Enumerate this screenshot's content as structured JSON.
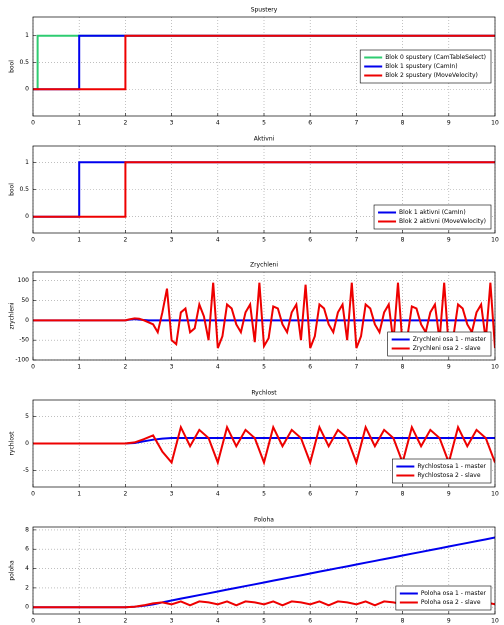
{
  "chart_data": [
    {
      "type": "line",
      "title": "Spustery",
      "ylabel": "bool",
      "xlim": [
        0,
        10
      ],
      "xticks": [
        0,
        1,
        2,
        3,
        4,
        5,
        6,
        7,
        8,
        9,
        10
      ],
      "ylim": [
        -0.5,
        1.35
      ],
      "yticks": [
        0,
        0.5,
        1
      ],
      "grid": true,
      "legend": "center right",
      "series": [
        {
          "name": "Blok 0 spustery (CamTableSelect)",
          "color": "#2ecc71",
          "x": [
            0,
            0.1,
            0.1,
            10
          ],
          "values": [
            0,
            0,
            1,
            1
          ]
        },
        {
          "name": "Blok 1 spustery (CamIn)",
          "color": "#0000ee",
          "x": [
            0,
            1,
            1,
            10
          ],
          "values": [
            0,
            0,
            1,
            1
          ]
        },
        {
          "name": "Blok 2 spustery (MoveVelocity)",
          "color": "#ee0000",
          "x": [
            0,
            2,
            2,
            10
          ],
          "values": [
            0,
            0,
            1,
            1
          ]
        }
      ]
    },
    {
      "type": "line",
      "title": "Aktivni",
      "ylabel": "bool",
      "xlim": [
        0,
        10
      ],
      "xticks": [
        0,
        1,
        2,
        3,
        4,
        5,
        6,
        7,
        8,
        9,
        10
      ],
      "ylim": [
        -0.3,
        1.3
      ],
      "yticks": [
        0,
        0.5,
        1
      ],
      "grid": true,
      "legend": "lower right",
      "series": [
        {
          "name": "Blok 1 aktivni (CamIn)",
          "color": "#0000ee",
          "x": [
            0,
            1,
            1,
            10
          ],
          "values": [
            0,
            0,
            1,
            1
          ]
        },
        {
          "name": "Blok 2 aktivni (MoveVelocity)",
          "color": "#ee0000",
          "x": [
            0,
            2,
            2,
            10
          ],
          "values": [
            0,
            0,
            1,
            1
          ]
        }
      ]
    },
    {
      "type": "line",
      "title": "Zrychleni",
      "ylabel": "zrychleni",
      "xlim": [
        0,
        10
      ],
      "xticks": [
        0,
        1,
        2,
        3,
        4,
        5,
        6,
        7,
        8,
        9,
        10
      ],
      "ylim": [
        -100,
        122
      ],
      "yticks": [
        -100,
        -50,
        0,
        50,
        100
      ],
      "grid": true,
      "legend": "lower right",
      "x": [
        0,
        0.1,
        0.2,
        0.3,
        0.4,
        0.5,
        0.6,
        0.7,
        0.8,
        0.9,
        1,
        1.1,
        1.2,
        1.3,
        1.4,
        1.5,
        1.6,
        1.7,
        1.8,
        1.9,
        2,
        2.1,
        2.2,
        2.3,
        2.4,
        2.5,
        2.6,
        2.7,
        2.8,
        2.9,
        3,
        3.1,
        3.2,
        3.3,
        3.4,
        3.5,
        3.6,
        3.7,
        3.8,
        3.9,
        4,
        4.1,
        4.2,
        4.3,
        4.4,
        4.5,
        4.6,
        4.7,
        4.8,
        4.9,
        5,
        5.1,
        5.2,
        5.3,
        5.4,
        5.5,
        5.6,
        5.7,
        5.8,
        5.9,
        6,
        6.1,
        6.2,
        6.3,
        6.4,
        6.5,
        6.6,
        6.7,
        6.8,
        6.9,
        7,
        7.1,
        7.2,
        7.3,
        7.4,
        7.5,
        7.6,
        7.7,
        7.8,
        7.9,
        8,
        8.1,
        8.2,
        8.3,
        8.4,
        8.5,
        8.6,
        8.7,
        8.8,
        8.9,
        9,
        9.1,
        9.2,
        9.3,
        9.4,
        9.5,
        9.6,
        9.7,
        9.8,
        9.9,
        10
      ],
      "series": [
        {
          "name": "Zrychleni osa 1 - master",
          "color": "#0000ee",
          "values": [
            0,
            0,
            0,
            0,
            0,
            0,
            0,
            0,
            0,
            0,
            0,
            0,
            0,
            0,
            0,
            0,
            0,
            0,
            0,
            0,
            0,
            2,
            3,
            2,
            1,
            0,
            0,
            0,
            0,
            0,
            0,
            0,
            0,
            0,
            0,
            0,
            0,
            0,
            0,
            0,
            0,
            0,
            0,
            0,
            0,
            0,
            0,
            0,
            0,
            0,
            0,
            0,
            0,
            0,
            0,
            0,
            0,
            0,
            0,
            0,
            0,
            0,
            0,
            0,
            0,
            0,
            0,
            0,
            0,
            0,
            0,
            0,
            0,
            0,
            0,
            0,
            0,
            0,
            0,
            0,
            0,
            0,
            0,
            0,
            0,
            0,
            0,
            0,
            0,
            0,
            0,
            0,
            0,
            0,
            0,
            0,
            0,
            0,
            0,
            0,
            0
          ]
        },
        {
          "name": "Zrychleni osa 2 - slave",
          "color": "#ee0000",
          "values": [
            0,
            0,
            0,
            0,
            0,
            0,
            0,
            0,
            0,
            0,
            0,
            0,
            0,
            0,
            0,
            0,
            0,
            0,
            0,
            0,
            0,
            3,
            5,
            4,
            0,
            -5,
            -10,
            -30,
            20,
            80,
            -50,
            -60,
            20,
            30,
            -30,
            -20,
            40,
            10,
            -50,
            95,
            -70,
            -40,
            40,
            30,
            -10,
            -30,
            20,
            40,
            -55,
            95,
            -65,
            -45,
            35,
            30,
            -10,
            -30,
            20,
            40,
            -50,
            90,
            -70,
            -40,
            40,
            30,
            -10,
            -30,
            20,
            40,
            -50,
            95,
            -70,
            -40,
            40,
            30,
            -10,
            -30,
            20,
            40,
            -55,
            95,
            -65,
            -45,
            35,
            30,
            -10,
            -30,
            20,
            40,
            -50,
            95,
            -70,
            -40,
            40,
            30,
            -10,
            -30,
            20,
            40,
            -50,
            95,
            -70
          ]
        }
      ]
    },
    {
      "type": "line",
      "title": "Rychlost",
      "ylabel": "rychlost",
      "xlim": [
        0,
        10
      ],
      "xticks": [
        0,
        1,
        2,
        3,
        4,
        5,
        6,
        7,
        8,
        9,
        10
      ],
      "ylim": [
        -8,
        8
      ],
      "yticks": [
        -5,
        0,
        5
      ],
      "grid": true,
      "legend": "lower right",
      "x": [
        0,
        0.2,
        0.4,
        0.6,
        0.8,
        1,
        1.2,
        1.4,
        1.6,
        1.8,
        2,
        2.2,
        2.4,
        2.6,
        2.8,
        3,
        3.2,
        3.4,
        3.6,
        3.8,
        4,
        4.2,
        4.4,
        4.6,
        4.8,
        5,
        5.2,
        5.4,
        5.6,
        5.8,
        6,
        6.2,
        6.4,
        6.6,
        6.8,
        7,
        7.2,
        7.4,
        7.6,
        7.8,
        8,
        8.2,
        8.4,
        8.6,
        8.8,
        9,
        9.2,
        9.4,
        9.6,
        9.8,
        10
      ],
      "series": [
        {
          "name": "Rychlostosa 1 - master",
          "color": "#0000ee",
          "values": [
            0,
            0,
            0,
            0,
            0,
            0,
            0,
            0,
            0,
            0,
            0,
            0.1,
            0.4,
            0.7,
            0.9,
            1,
            1,
            1,
            1,
            1,
            1,
            1,
            1,
            1,
            1,
            1,
            1,
            1,
            1,
            1,
            1,
            1,
            1,
            1,
            1,
            1,
            1,
            1,
            1,
            1,
            1,
            1,
            1,
            1,
            1,
            1,
            1,
            1,
            1,
            1,
            1
          ]
        },
        {
          "name": "Rychlostosa 2 - slave",
          "color": "#ee0000",
          "values": [
            0,
            0,
            0,
            0,
            0,
            0,
            0,
            0,
            0,
            0,
            0,
            0.2,
            0.8,
            1.5,
            -1.5,
            -3.5,
            3,
            -0.5,
            2.5,
            1,
            -3.5,
            3,
            -0.5,
            2.5,
            1,
            -3.5,
            3,
            -0.5,
            2.5,
            1,
            -3.5,
            3,
            -0.5,
            2.5,
            1,
            -3.5,
            3,
            -0.5,
            2.5,
            1,
            -3.5,
            3,
            -0.5,
            2.5,
            1,
            -3.5,
            3,
            -0.5,
            2.5,
            1,
            -3.5
          ]
        }
      ]
    },
    {
      "type": "line",
      "title": "Poloha",
      "ylabel": "poloha",
      "xlim": [
        0,
        10
      ],
      "xticks": [
        0,
        1,
        2,
        3,
        4,
        5,
        6,
        7,
        8,
        9,
        10
      ],
      "ylim": [
        -0.7,
        8.3
      ],
      "yticks": [
        0,
        2,
        4,
        6,
        8
      ],
      "grid": true,
      "legend": "lower right",
      "x": [
        0,
        0.2,
        0.4,
        0.6,
        0.8,
        1,
        1.2,
        1.4,
        1.6,
        1.8,
        2,
        2.2,
        2.4,
        2.6,
        2.8,
        3,
        3.2,
        3.4,
        3.6,
        3.8,
        4,
        4.2,
        4.4,
        4.6,
        4.8,
        5,
        5.2,
        5.4,
        5.6,
        5.8,
        6,
        6.2,
        6.4,
        6.6,
        6.8,
        7,
        7.2,
        7.4,
        7.6,
        7.8,
        8,
        8.2,
        8.4,
        8.6,
        8.8,
        9,
        9.2,
        9.4,
        9.6,
        9.8,
        10
      ],
      "series": [
        {
          "name": "Poloha osa 1 - master",
          "color": "#0000ee",
          "values": [
            0,
            0,
            0,
            0,
            0,
            0,
            0,
            0,
            0,
            0,
            0,
            0.05,
            0.15,
            0.3,
            0.5,
            0.7,
            0.89,
            1.07,
            1.26,
            1.44,
            1.63,
            1.82,
            2.0,
            2.19,
            2.37,
            2.56,
            2.75,
            2.93,
            3.12,
            3.3,
            3.49,
            3.68,
            3.86,
            4.05,
            4.23,
            4.42,
            4.61,
            4.79,
            4.98,
            5.16,
            5.35,
            5.54,
            5.72,
            5.91,
            6.09,
            6.28,
            6.47,
            6.65,
            6.84,
            7.02,
            7.21
          ]
        },
        {
          "name": "Poloha osa 2 - slave",
          "color": "#ee0000",
          "values": [
            0,
            0,
            0,
            0,
            0,
            0,
            0,
            0,
            0,
            0,
            0,
            0.05,
            0.2,
            0.4,
            0.5,
            0.3,
            0.6,
            0.2,
            0.6,
            0.5,
            0.3,
            0.6,
            0.2,
            0.6,
            0.5,
            0.3,
            0.6,
            0.2,
            0.6,
            0.5,
            0.3,
            0.6,
            0.2,
            0.6,
            0.5,
            0.3,
            0.6,
            0.2,
            0.6,
            0.5,
            0.3,
            0.6,
            0.2,
            0.6,
            0.5,
            0.3,
            0.6,
            0.2,
            0.6,
            0.5,
            0.3
          ]
        }
      ]
    }
  ]
}
